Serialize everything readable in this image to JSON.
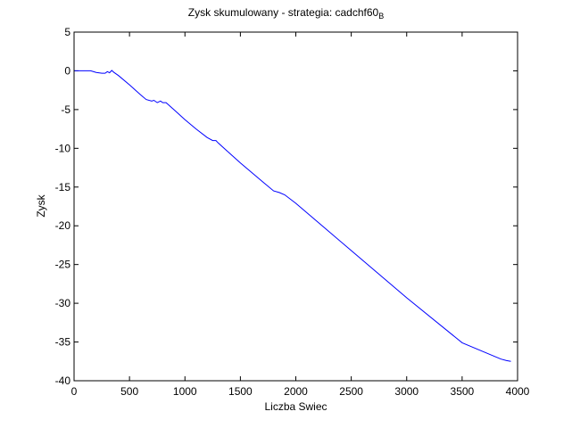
{
  "chart_data": {
    "type": "line",
    "title": "Zysk skumulowany - strategia: cadchf60",
    "title_subscript": "B",
    "xlabel": "Liczba Swiec",
    "ylabel": "Zysk",
    "xlim": [
      0,
      4000
    ],
    "ylim": [
      -40,
      5
    ],
    "xticks": [
      0,
      500,
      1000,
      1500,
      2000,
      2500,
      3000,
      3500,
      4000
    ],
    "yticks": [
      5,
      0,
      -5,
      -10,
      -15,
      -20,
      -25,
      -30,
      -35,
      -40
    ],
    "grid": false,
    "line_color": "#0000ff",
    "series": [
      {
        "x": [
          0,
          150,
          200,
          250,
          280,
          300,
          320,
          340,
          360,
          400,
          500,
          600,
          650,
          700,
          720,
          750,
          780,
          800,
          830,
          900,
          1000,
          1100,
          1200,
          1250,
          1280,
          1300,
          1400,
          1500,
          1600,
          1700,
          1800,
          1850,
          1900,
          2000,
          2500,
          3000,
          3500,
          3800,
          3850,
          3900,
          3940
        ],
        "y": [
          0,
          0,
          -0.2,
          -0.3,
          -0.3,
          -0.1,
          -0.25,
          0.05,
          -0.2,
          -0.6,
          -1.8,
          -3.1,
          -3.7,
          -3.9,
          -3.8,
          -4.1,
          -3.9,
          -4.1,
          -4.1,
          -5.0,
          -6.3,
          -7.5,
          -8.6,
          -9.0,
          -9.0,
          -9.3,
          -10.6,
          -11.9,
          -13.1,
          -14.3,
          -15.5,
          -15.7,
          -16.0,
          -17.1,
          -23.2,
          -29.3,
          -35.1,
          -36.9,
          -37.2,
          -37.4,
          -37.5
        ]
      }
    ]
  }
}
